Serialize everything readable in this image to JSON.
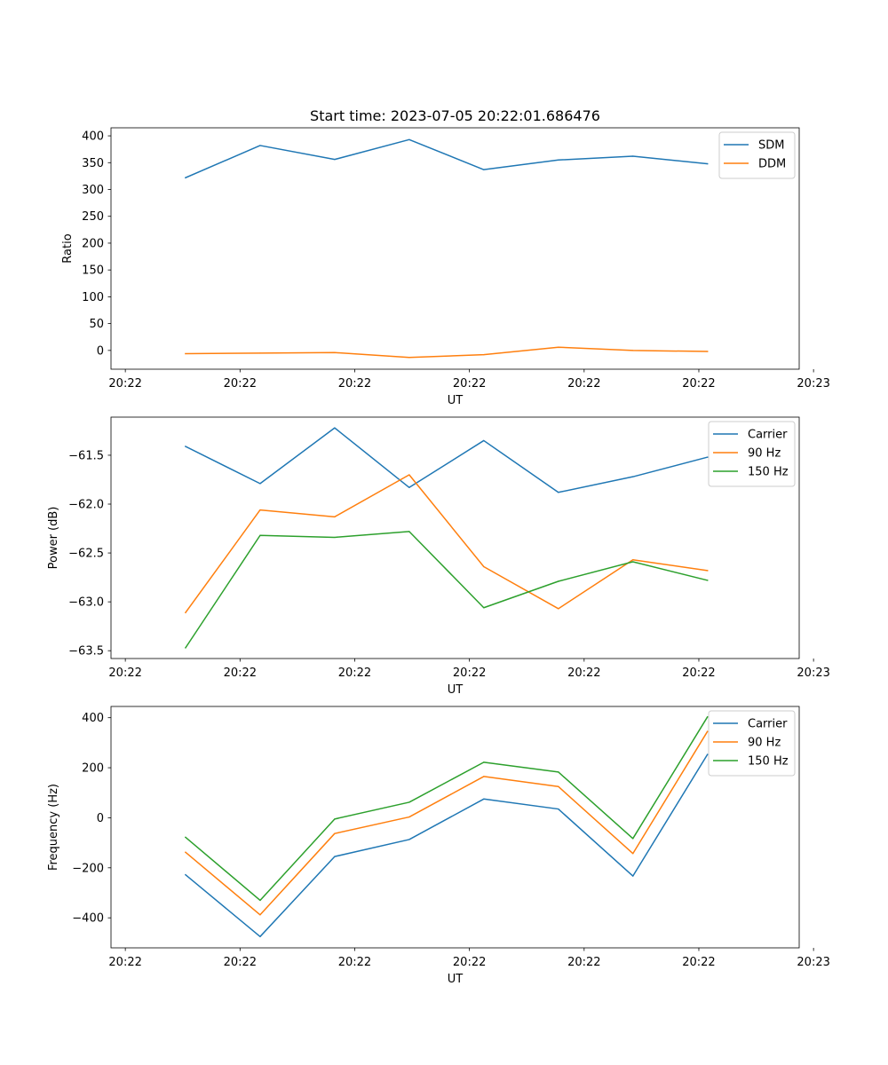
{
  "figure_title": "Start time: 2023-07-05 20:22:01.686476",
  "colors": {
    "blue": "#1f77b4",
    "orange": "#ff7f0e",
    "green": "#2ca02c"
  },
  "chart_data": [
    {
      "type": "line",
      "name": "ratio",
      "title": "Start time: 2023-07-05 20:22:01.686476",
      "xlabel": "UT",
      "ylabel": "Ratio",
      "xlim": [
        0,
        6
      ],
      "x_ticks": [
        0.125,
        1.125,
        2.125,
        3.125,
        4.125,
        5.125,
        6.125
      ],
      "x_tick_labels": [
        "20:22",
        "20:22",
        "20:22",
        "20:22",
        "20:22",
        "20:22",
        "20:23"
      ],
      "x": [
        0.65,
        1.3,
        1.95,
        2.6,
        3.25,
        3.9,
        4.55,
        5.2
      ],
      "ylim": [
        -35,
        415
      ],
      "y_ticks": [
        0,
        50,
        100,
        150,
        200,
        250,
        300,
        350,
        400
      ],
      "y_tick_labels": [
        "0",
        "50",
        "100",
        "150",
        "200",
        "250",
        "300",
        "350",
        "400"
      ],
      "legend_position": "top-right",
      "series": [
        {
          "name": "SDM",
          "color": "#1f77b4",
          "values": [
            322,
            382,
            356,
            393,
            337,
            355,
            362,
            348
          ]
        },
        {
          "name": "DDM",
          "color": "#ff7f0e",
          "values": [
            -6,
            -5,
            -4,
            -13,
            -8,
            6,
            0,
            -2
          ]
        }
      ]
    },
    {
      "type": "line",
      "name": "power",
      "title": "",
      "xlabel": "UT",
      "ylabel": "Power (dB)",
      "xlim": [
        0,
        6
      ],
      "x_ticks": [
        0.125,
        1.125,
        2.125,
        3.125,
        4.125,
        5.125,
        6.125
      ],
      "x_tick_labels": [
        "20:22",
        "20:22",
        "20:22",
        "20:22",
        "20:22",
        "20:22",
        "20:23"
      ],
      "x": [
        0.65,
        1.3,
        1.95,
        2.6,
        3.25,
        3.9,
        4.55,
        5.2
      ],
      "ylim": [
        -63.58,
        -61.11
      ],
      "y_ticks": [
        -63.5,
        -63.0,
        -62.5,
        -62.0,
        -61.5
      ],
      "y_tick_labels": [
        "−63.5",
        "−63.0",
        "−62.5",
        "−62.0",
        "−61.5"
      ],
      "legend_position": "top-right",
      "series": [
        {
          "name": "Carrier",
          "color": "#1f77b4",
          "values": [
            -61.41,
            -61.79,
            -61.22,
            -61.83,
            -61.35,
            -61.88,
            -61.72,
            -61.52
          ]
        },
        {
          "name": "90 Hz",
          "color": "#ff7f0e",
          "values": [
            -63.11,
            -62.06,
            -62.13,
            -61.7,
            -62.64,
            -63.07,
            -62.57,
            -62.68
          ]
        },
        {
          "name": "150 Hz",
          "color": "#2ca02c",
          "values": [
            -63.47,
            -62.32,
            -62.34,
            -62.28,
            -63.06,
            -62.79,
            -62.59,
            -62.78
          ]
        }
      ]
    },
    {
      "type": "line",
      "name": "frequency",
      "title": "",
      "xlabel": "UT",
      "ylabel": "Frequency (Hz)",
      "xlim": [
        0,
        6
      ],
      "x_ticks": [
        0.125,
        1.125,
        2.125,
        3.125,
        4.125,
        5.125,
        6.125
      ],
      "x_tick_labels": [
        "20:22",
        "20:22",
        "20:22",
        "20:22",
        "20:22",
        "20:22",
        "20:23"
      ],
      "x": [
        0.65,
        1.3,
        1.95,
        2.6,
        3.25,
        3.9,
        4.55,
        5.2
      ],
      "ylim": [
        -520,
        445
      ],
      "y_ticks": [
        -400,
        -200,
        0,
        200,
        400
      ],
      "y_tick_labels": [
        "−400",
        "−200",
        "0",
        "200",
        "400"
      ],
      "legend_position": "top-right",
      "series": [
        {
          "name": "Carrier",
          "color": "#1f77b4",
          "values": [
            -228,
            -475,
            -155,
            -87,
            75,
            35,
            -233,
            253
          ]
        },
        {
          "name": "90 Hz",
          "color": "#ff7f0e",
          "values": [
            -138,
            -388,
            -63,
            3,
            165,
            125,
            -143,
            345
          ]
        },
        {
          "name": "150 Hz",
          "color": "#2ca02c",
          "values": [
            -78,
            -330,
            -5,
            62,
            222,
            183,
            -83,
            403
          ]
        }
      ]
    }
  ]
}
